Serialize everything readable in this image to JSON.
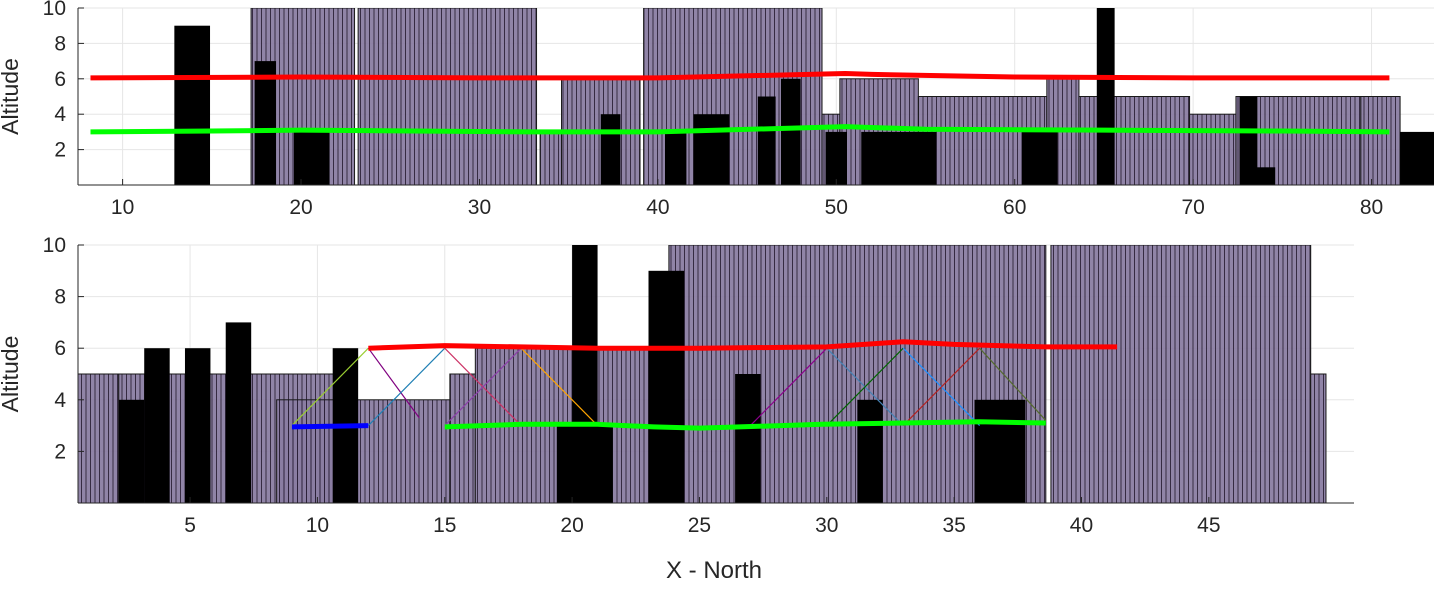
{
  "colors": {
    "building_fill": "#8a7da2",
    "building_hatch": "#2b2038",
    "obstacle": "#000000",
    "path_high": "#ff0000",
    "path_low": "#00ff00",
    "path_start": "#0000ff",
    "grid": "#e6e6e6",
    "axis": "#262626"
  },
  "chart_data": [
    {
      "type": "bar",
      "name": "top-panel",
      "title": "",
      "xlabel": "",
      "ylabel": "Altitude",
      "xlim": [
        7.5,
        83.5
      ],
      "ylim": [
        0,
        10
      ],
      "xticks": [
        10,
        20,
        30,
        40,
        50,
        60,
        70,
        80
      ],
      "yticks": [
        2,
        4,
        6,
        8,
        10
      ],
      "grid": true,
      "buildings": [
        {
          "x0": 17.2,
          "x1": 23.0,
          "h": 10
        },
        {
          "x0": 23.2,
          "x1": 33.2,
          "h": 10
        },
        {
          "x0": 33.4,
          "x1": 34.6,
          "h": 3
        },
        {
          "x0": 34.6,
          "x1": 39.0,
          "h": 6
        },
        {
          "x0": 39.2,
          "x1": 49.2,
          "h": 10
        },
        {
          "x0": 49.2,
          "x1": 50.2,
          "h": 4
        },
        {
          "x0": 50.2,
          "x1": 54.6,
          "h": 6
        },
        {
          "x0": 54.6,
          "x1": 61.8,
          "h": 5
        },
        {
          "x0": 61.8,
          "x1": 63.6,
          "h": 6
        },
        {
          "x0": 63.6,
          "x1": 69.8,
          "h": 5
        },
        {
          "x0": 69.8,
          "x1": 72.4,
          "h": 4
        },
        {
          "x0": 72.4,
          "x1": 79.4,
          "h": 5
        },
        {
          "x0": 79.4,
          "x1": 81.6,
          "h": 5
        }
      ],
      "obstacles": [
        {
          "x0": 12.9,
          "x1": 14.9,
          "h": 9
        },
        {
          "x0": 17.4,
          "x1": 18.6,
          "h": 7
        },
        {
          "x0": 19.6,
          "x1": 21.6,
          "h": 3
        },
        {
          "x0": 36.8,
          "x1": 37.9,
          "h": 4
        },
        {
          "x0": 40.4,
          "x1": 41.6,
          "h": 3
        },
        {
          "x0": 42.0,
          "x1": 44.0,
          "h": 4
        },
        {
          "x0": 45.6,
          "x1": 46.6,
          "h": 5
        },
        {
          "x0": 46.9,
          "x1": 48.0,
          "h": 6
        },
        {
          "x0": 49.4,
          "x1": 50.6,
          "h": 3
        },
        {
          "x0": 51.4,
          "x1": 55.6,
          "h": 3
        },
        {
          "x0": 60.4,
          "x1": 62.4,
          "h": 3
        },
        {
          "x0": 64.6,
          "x1": 65.6,
          "h": 10
        },
        {
          "x0": 72.6,
          "x1": 73.6,
          "h": 5
        },
        {
          "x0": 73.4,
          "x1": 74.6,
          "h": 1
        },
        {
          "x0": 81.6,
          "x1": 83.5,
          "h": 3
        }
      ],
      "series": [
        {
          "name": "path-high",
          "color": "#ff0000",
          "x": [
            8.2,
            20,
            30,
            40,
            50.5,
            52,
            60,
            70,
            81
          ],
          "y": [
            6.05,
            6.1,
            6.05,
            6.05,
            6.3,
            6.25,
            6.1,
            6.05,
            6.05
          ]
        },
        {
          "name": "path-low",
          "color": "#00ff00",
          "x": [
            8.2,
            15,
            20,
            33,
            40,
            50.5,
            55,
            65,
            75,
            81
          ],
          "y": [
            3.0,
            3.05,
            3.1,
            3.0,
            3.0,
            3.3,
            3.15,
            3.1,
            3.05,
            3.0
          ]
        }
      ]
    },
    {
      "type": "bar",
      "name": "bottom-panel",
      "title": "",
      "xlabel": "X - North",
      "ylabel": "Altitude",
      "xlim": [
        0.6,
        50.7
      ],
      "ylim": [
        0,
        10
      ],
      "xticks": [
        5,
        10,
        15,
        20,
        25,
        30,
        35,
        40,
        45
      ],
      "yticks": [
        2,
        4,
        6,
        8,
        10
      ],
      "grid": true,
      "buildings": [
        {
          "x0": 0.6,
          "x1": 2.2,
          "h": 5
        },
        {
          "x0": 2.2,
          "x1": 11.2,
          "h": 5
        },
        {
          "x0": 8.4,
          "x1": 15.2,
          "h": 4
        },
        {
          "x0": 15.2,
          "x1": 16.2,
          "h": 5
        },
        {
          "x0": 16.2,
          "x1": 23.6,
          "h": 6
        },
        {
          "x0": 23.8,
          "x1": 38.6,
          "h": 10
        },
        {
          "x0": 38.8,
          "x1": 49.0,
          "h": 10
        },
        {
          "x0": 49.0,
          "x1": 49.6,
          "h": 5
        }
      ],
      "obstacles": [
        {
          "x0": 2.2,
          "x1": 3.2,
          "h": 4
        },
        {
          "x0": 3.2,
          "x1": 4.2,
          "h": 6
        },
        {
          "x0": 4.8,
          "x1": 5.8,
          "h": 6
        },
        {
          "x0": 6.4,
          "x1": 7.4,
          "h": 7
        },
        {
          "x0": 10.6,
          "x1": 11.6,
          "h": 6
        },
        {
          "x0": 19.4,
          "x1": 20.4,
          "h": 3
        },
        {
          "x0": 20.0,
          "x1": 21.0,
          "h": 10
        },
        {
          "x0": 20.4,
          "x1": 21.6,
          "h": 3
        },
        {
          "x0": 23.0,
          "x1": 24.4,
          "h": 9
        },
        {
          "x0": 26.4,
          "x1": 27.4,
          "h": 5
        },
        {
          "x0": 31.2,
          "x1": 32.2,
          "h": 4
        },
        {
          "x0": 35.8,
          "x1": 37.8,
          "h": 4
        }
      ],
      "series": [
        {
          "name": "path-start",
          "color": "#0000ff",
          "x": [
            9,
            12
          ],
          "y": [
            2.95,
            3.0
          ]
        },
        {
          "name": "path-high",
          "color": "#ff0000",
          "x": [
            12,
            15,
            18,
            21,
            25,
            30,
            33,
            35,
            38.6,
            41.4
          ],
          "y": [
            6.0,
            6.1,
            6.05,
            6.0,
            6.0,
            6.05,
            6.25,
            6.15,
            6.05,
            6.05
          ]
        },
        {
          "name": "path-low",
          "color": "#00ff00",
          "x": [
            15,
            18,
            21,
            23.2,
            25,
            29.8,
            33,
            36,
            38.6
          ],
          "y": [
            2.95,
            3.05,
            3.05,
            2.95,
            2.9,
            3.05,
            3.1,
            3.15,
            3.1
          ]
        }
      ],
      "transitions": [
        {
          "x1": 9.0,
          "y1": 3,
          "x2": 12.0,
          "y2": 6,
          "color": "#9acd32"
        },
        {
          "x1": 12.0,
          "y1": 6,
          "x2": 14.0,
          "y2": 3.3,
          "color": "#800080"
        },
        {
          "x1": 12.0,
          "y1": 3,
          "x2": 15.0,
          "y2": 6,
          "color": "#1f7fb4"
        },
        {
          "x1": 15.0,
          "y1": 6,
          "x2": 18.0,
          "y2": 3,
          "color": "#cc3366"
        },
        {
          "x1": 15.0,
          "y1": 3,
          "x2": 18.0,
          "y2": 6,
          "color": "#8b3fa8"
        },
        {
          "x1": 18.0,
          "y1": 6,
          "x2": 21.0,
          "y2": 3,
          "color": "#ffa500"
        },
        {
          "x1": 27.0,
          "y1": 3,
          "x2": 30.0,
          "y2": 6,
          "color": "#8b008b"
        },
        {
          "x1": 30.0,
          "y1": 6,
          "x2": 33.0,
          "y2": 3,
          "color": "#4682b4"
        },
        {
          "x1": 30.0,
          "y1": 3,
          "x2": 33.0,
          "y2": 6,
          "color": "#006400"
        },
        {
          "x1": 33.0,
          "y1": 6,
          "x2": 36.0,
          "y2": 3,
          "color": "#1e90ff"
        },
        {
          "x1": 33.0,
          "y1": 3,
          "x2": 36.0,
          "y2": 6,
          "color": "#b22222"
        },
        {
          "x1": 36.0,
          "y1": 6,
          "x2": 38.6,
          "y2": 3.2,
          "color": "#556b2f"
        }
      ]
    }
  ]
}
